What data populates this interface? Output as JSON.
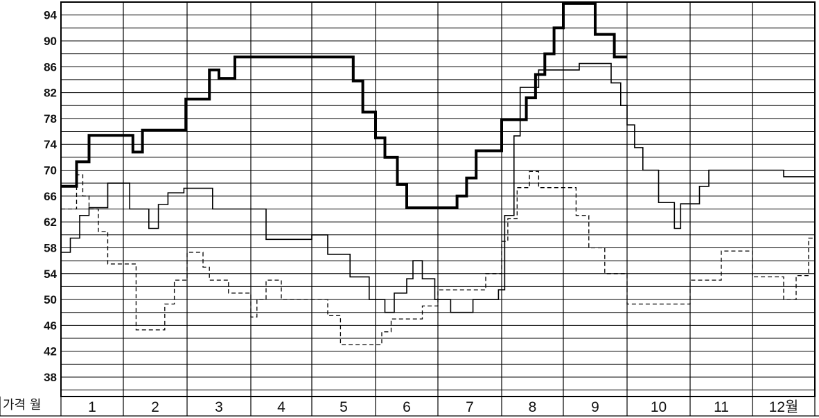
{
  "chart_data": {
    "type": "line",
    "title": "",
    "corner_label": "가격 월",
    "xlabel": "",
    "ylabel": "",
    "x_categories": [
      "1",
      "2",
      "3",
      "4",
      "5",
      "6",
      "7",
      "8",
      "9",
      "10",
      "11",
      "12월"
    ],
    "x_range": [
      0,
      12
    ],
    "ylim": [
      35,
      96
    ],
    "y_ticks": [
      38,
      42,
      46,
      50,
      54,
      58,
      62,
      66,
      70,
      74,
      78,
      82,
      86,
      90,
      94
    ],
    "grid": true,
    "step": true,
    "series": [
      {
        "style": "thick-solid",
        "color": "#000000",
        "x": [
          0.0,
          0.25,
          0.45,
          1.15,
          1.3,
          1.98,
          2.35,
          2.5,
          2.75,
          3.0,
          4.65,
          4.8,
          5.0,
          5.15,
          5.35,
          5.5,
          5.8,
          6.3,
          6.45,
          6.6,
          7.0,
          7.4,
          7.55,
          7.7,
          7.85,
          8.0,
          8.5,
          8.8,
          8.85
        ],
        "y": [
          67.5,
          71.3,
          75.4,
          72.8,
          76.2,
          81.0,
          85.5,
          84.2,
          87.5,
          87.5,
          83.8,
          79.0,
          75.0,
          72.0,
          67.8,
          64.2,
          64.2,
          66.0,
          68.8,
          73.0,
          77.8,
          81.2,
          84.8,
          88.0,
          92.0,
          95.8,
          91.0,
          87.5,
          87.5
        ]
      },
      {
        "style": "thin-solid",
        "color": "#000000",
        "x": [
          0.0,
          0.15,
          0.3,
          0.45,
          0.75,
          1.1,
          1.4,
          1.55,
          1.7,
          1.95,
          2.4,
          2.75,
          3.25,
          4.0,
          4.25,
          4.6,
          4.9,
          5.15,
          5.3,
          5.5,
          5.6,
          5.75,
          5.95,
          6.2,
          6.55,
          6.95,
          7.05,
          7.2,
          7.3,
          7.6,
          8.25,
          8.5,
          8.75,
          8.9,
          9.0,
          9.12,
          9.25,
          9.5,
          9.75,
          9.85,
          10.15,
          10.3,
          10.5,
          11.0,
          11.5,
          11.75,
          12.0
        ],
        "y": [
          57.3,
          59.5,
          63.0,
          64.2,
          68.0,
          64.0,
          61.0,
          64.7,
          66.5,
          67.2,
          64.0,
          64.0,
          59.3,
          60.0,
          57.0,
          53.5,
          50.0,
          48.0,
          51.0,
          53.2,
          56.0,
          53.2,
          50.0,
          48.0,
          50.0,
          51.5,
          63.0,
          75.3,
          82.8,
          85.5,
          86.5,
          86.5,
          83.5,
          80.0,
          77.0,
          73.5,
          70.0,
          65.0,
          61.0,
          64.8,
          67.5,
          70.0,
          70.0,
          70.0,
          69.0,
          69.0,
          69.0
        ]
      },
      {
        "style": "dashed",
        "color": "#000000",
        "x": [
          0.0,
          0.25,
          0.35,
          0.45,
          0.6,
          0.75,
          1.2,
          1.65,
          1.8,
          2.0,
          2.25,
          2.35,
          2.65,
          3.0,
          3.1,
          3.25,
          3.5,
          3.75,
          4.25,
          4.45,
          4.75,
          5.1,
          5.25,
          5.4,
          5.5,
          5.75,
          6.0,
          6.1,
          6.3,
          6.55,
          6.75,
          7.0,
          7.1,
          7.25,
          7.45,
          7.6,
          8.2,
          8.4,
          8.65,
          8.85,
          9.0,
          9.75,
          10.0,
          10.5,
          11.0,
          11.5,
          11.7,
          11.9
        ],
        "y": [
          64.0,
          69.3,
          66.0,
          64.0,
          60.5,
          55.5,
          45.3,
          49.3,
          53.0,
          57.3,
          55.0,
          53.0,
          51.0,
          47.3,
          50.0,
          53.0,
          50.0,
          50.0,
          47.5,
          43.0,
          43.0,
          45.0,
          47.0,
          47.0,
          47.0,
          49.0,
          51.5,
          51.5,
          51.5,
          51.5,
          54.0,
          59.0,
          62.5,
          67.3,
          69.8,
          67.3,
          63.0,
          58.0,
          54.0,
          54.0,
          49.3,
          49.3,
          53.0,
          57.5,
          53.5,
          50.0,
          53.7,
          59.5
        ]
      }
    ]
  }
}
